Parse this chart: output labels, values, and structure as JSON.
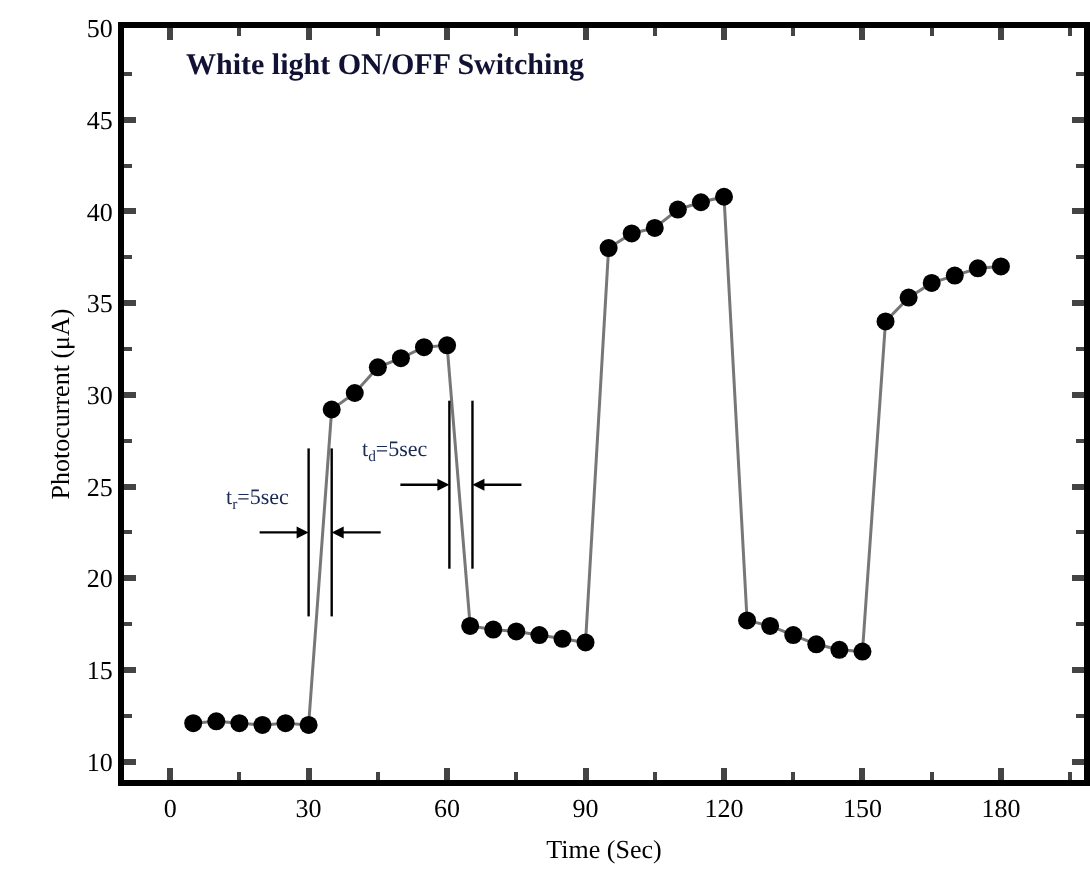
{
  "chart_data": {
    "type": "line",
    "title": "White light ON/OFF Switching",
    "xlabel": "Time (Sec)",
    "ylabel": "Photocurrent (μA)",
    "x": [
      5,
      10,
      15,
      20,
      25,
      30,
      35,
      40,
      45,
      50,
      55,
      60,
      65,
      70,
      75,
      80,
      85,
      90,
      95,
      100,
      105,
      110,
      115,
      120,
      125,
      130,
      135,
      140,
      145,
      150,
      155,
      160,
      165,
      170,
      175,
      180
    ],
    "series": [
      {
        "color": "#000000",
        "values": [
          12.1,
          12.2,
          12.1,
          12.0,
          12.1,
          12.0,
          29.2,
          30.1,
          31.5,
          32.0,
          32.6,
          32.7,
          17.4,
          17.2,
          17.1,
          16.9,
          16.7,
          16.5,
          38.0,
          38.8,
          39.1,
          40.1,
          40.5,
          40.8,
          17.7,
          17.4,
          16.9,
          16.4,
          16.1,
          16.0,
          34.0,
          35.3,
          36.1,
          36.5,
          36.9,
          37.0
        ]
      }
    ],
    "annotations": [
      {
        "text": "t$_{r}$=5sec",
        "x": 32.5,
        "y": 22.5
      },
      {
        "text": "t$_{d}$=5sec",
        "x": 63,
        "y": 25.1
      }
    ],
    "xlim": [
      -10,
      198
    ],
    "xticks": [
      0,
      30,
      60,
      90,
      120,
      150,
      180
    ],
    "ylim": [
      9,
      50
    ],
    "yticks": [
      10,
      15,
      20,
      25,
      30,
      35,
      40,
      45,
      50
    ],
    "marker": "circle",
    "line_style": "solid"
  }
}
